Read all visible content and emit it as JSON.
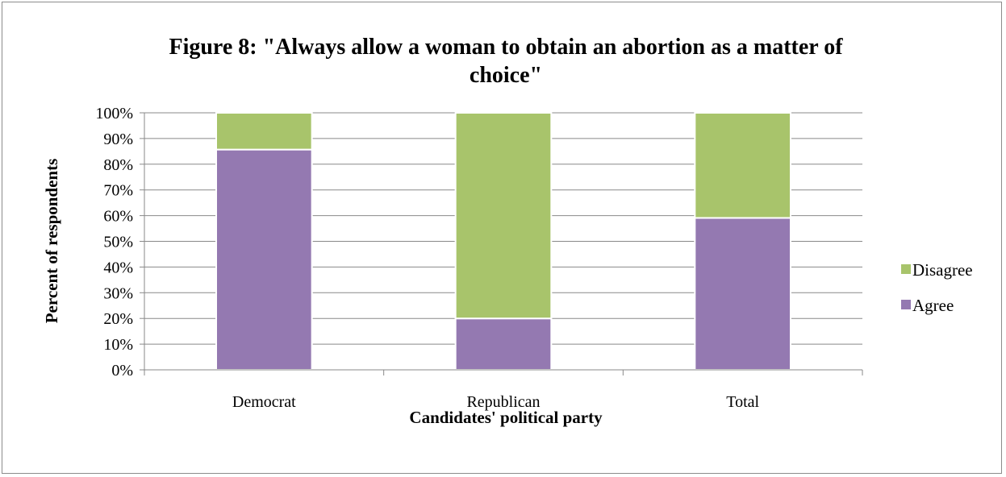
{
  "chart_data": {
    "type": "bar",
    "stacked": true,
    "title_line1": "Figure 8: \"Always allow a woman to obtain an abortion as a matter of",
    "title_line2": "choice\"",
    "xlabel": "Candidates' political party",
    "ylabel": "Percent of respondents",
    "categories": [
      "Democrat",
      "Republican",
      "Total"
    ],
    "series": [
      {
        "name": "Agree",
        "values": [
          85.7,
          20.0,
          59.1
        ],
        "color": "#9479b1"
      },
      {
        "name": "Disagree",
        "values": [
          14.3,
          80.0,
          40.9
        ],
        "color": "#a8c46b"
      }
    ],
    "ylim": [
      0,
      100
    ],
    "yticks": [
      "0%",
      "10%",
      "20%",
      "30%",
      "40%",
      "50%",
      "60%",
      "70%",
      "80%",
      "90%",
      "100%"
    ],
    "grid": true,
    "gridline_color": "#898989",
    "legend_position": "right",
    "legend_order": [
      "Disagree",
      "Agree"
    ]
  }
}
